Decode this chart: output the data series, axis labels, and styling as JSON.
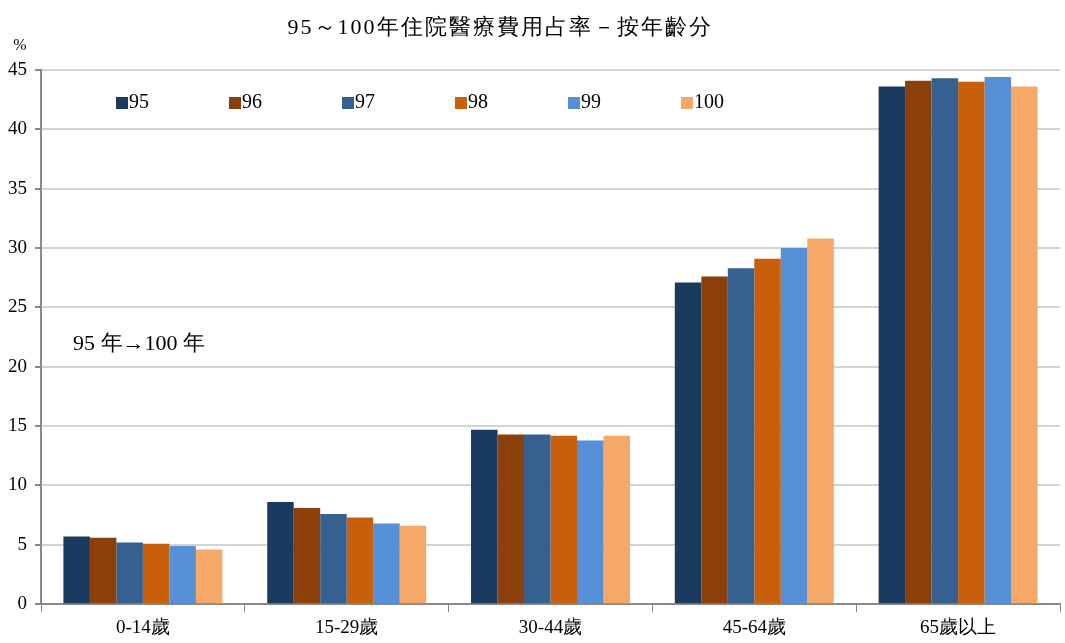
{
  "chart_data": {
    "type": "bar",
    "title": "95～100年住院醫療費用占率－按年齡分",
    "ylabel": "%",
    "categories": [
      "0-14歲",
      "15-29歲",
      "30-44歲",
      "45-64歲",
      "65歲以上"
    ],
    "series": [
      {
        "name": "95",
        "color": "#1b3a5f",
        "values": [
          5.7,
          8.6,
          14.7,
          27.1,
          43.6
        ]
      },
      {
        "name": "96",
        "color": "#8b3f0a",
        "values": [
          5.6,
          8.1,
          14.3,
          27.6,
          44.1
        ]
      },
      {
        "name": "97",
        "color": "#35608f",
        "values": [
          5.2,
          7.6,
          14.3,
          28.3,
          44.3
        ]
      },
      {
        "name": "98",
        "color": "#c85f0b",
        "values": [
          5.1,
          7.3,
          14.2,
          29.1,
          44.0
        ]
      },
      {
        "name": "99",
        "color": "#558fd6",
        "values": [
          4.9,
          6.8,
          13.8,
          30.0,
          44.4
        ]
      },
      {
        "name": "100",
        "color": "#f5a868",
        "values": [
          4.6,
          6.6,
          14.2,
          30.8,
          43.6
        ]
      }
    ],
    "ylim": [
      0,
      45
    ],
    "yticks": [
      0,
      5,
      10,
      15,
      20,
      25,
      30,
      35,
      40,
      45
    ],
    "grid": "y",
    "legend": "top left",
    "annotations": [
      "95 年→100 年"
    ]
  }
}
